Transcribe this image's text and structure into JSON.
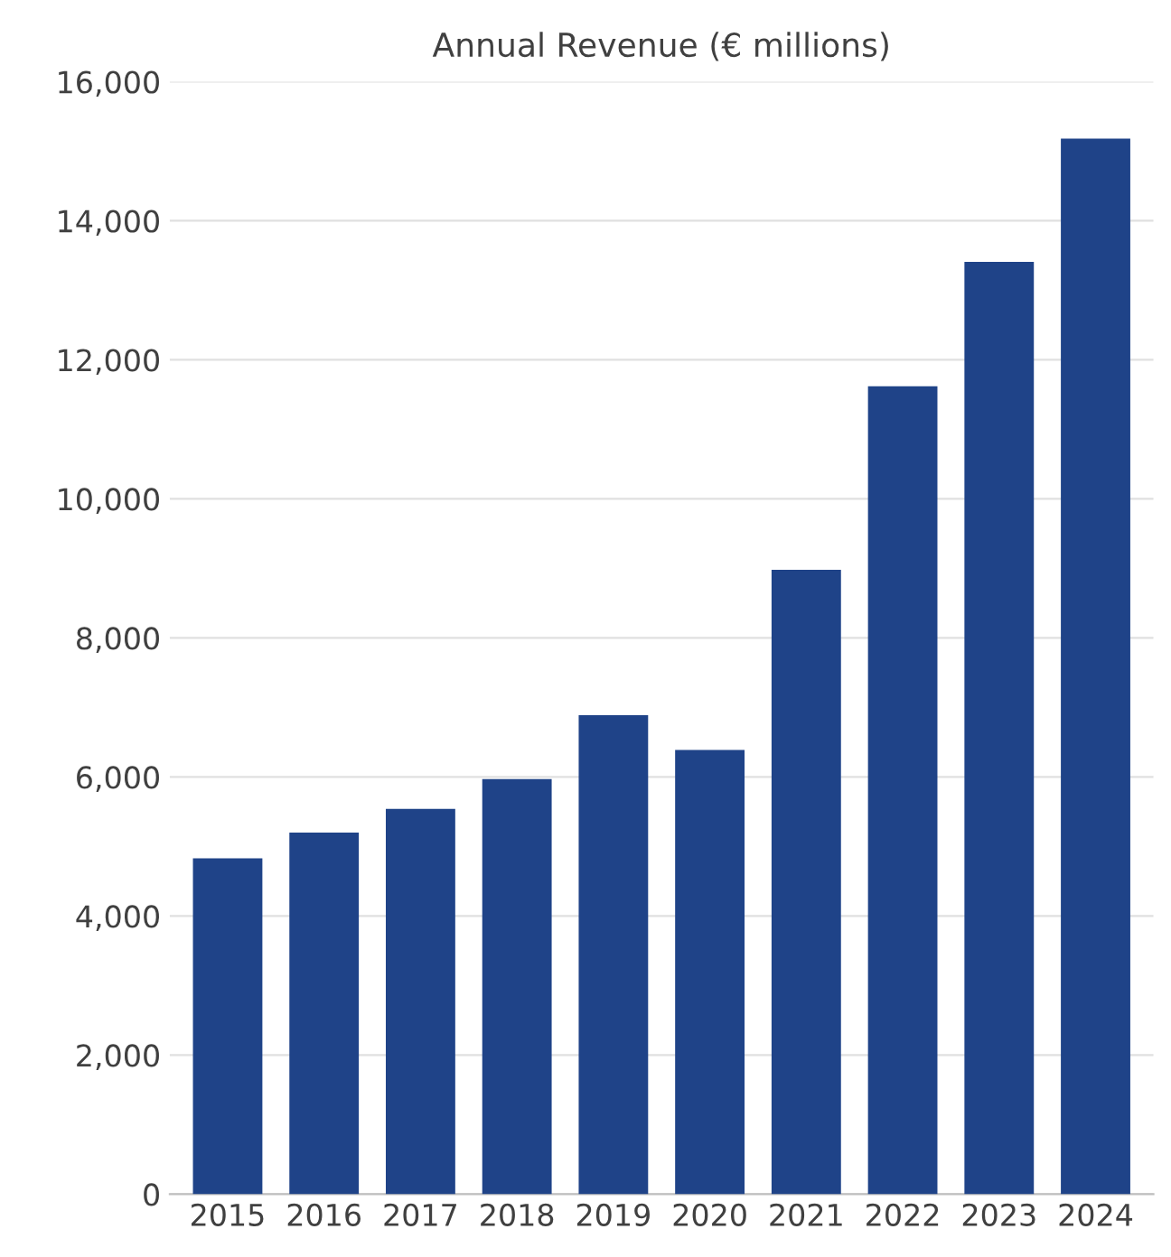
{
  "chart_data": {
    "type": "bar",
    "title": "Annual Revenue (€ millions)",
    "categories": [
      "2015",
      "2016",
      "2017",
      "2018",
      "2019",
      "2020",
      "2021",
      "2022",
      "2023",
      "2024"
    ],
    "values": [
      4830,
      5200,
      5540,
      5970,
      6890,
      6390,
      8980,
      11620,
      13410,
      15180
    ],
    "color": "#1f4388",
    "ylim": [
      0,
      16000
    ],
    "yticks": [
      {
        "value": 0,
        "label": "0"
      },
      {
        "value": 2000,
        "label": "2,000"
      },
      {
        "value": 4000,
        "label": "4,000"
      },
      {
        "value": 6000,
        "label": "6,000"
      },
      {
        "value": 8000,
        "label": "8,000"
      },
      {
        "value": 10000,
        "label": "10,000"
      },
      {
        "value": 12000,
        "label": "12,000"
      },
      {
        "value": 14000,
        "label": "14,000"
      },
      {
        "value": 16000,
        "label": "16,000"
      }
    ],
    "grid": "y"
  }
}
